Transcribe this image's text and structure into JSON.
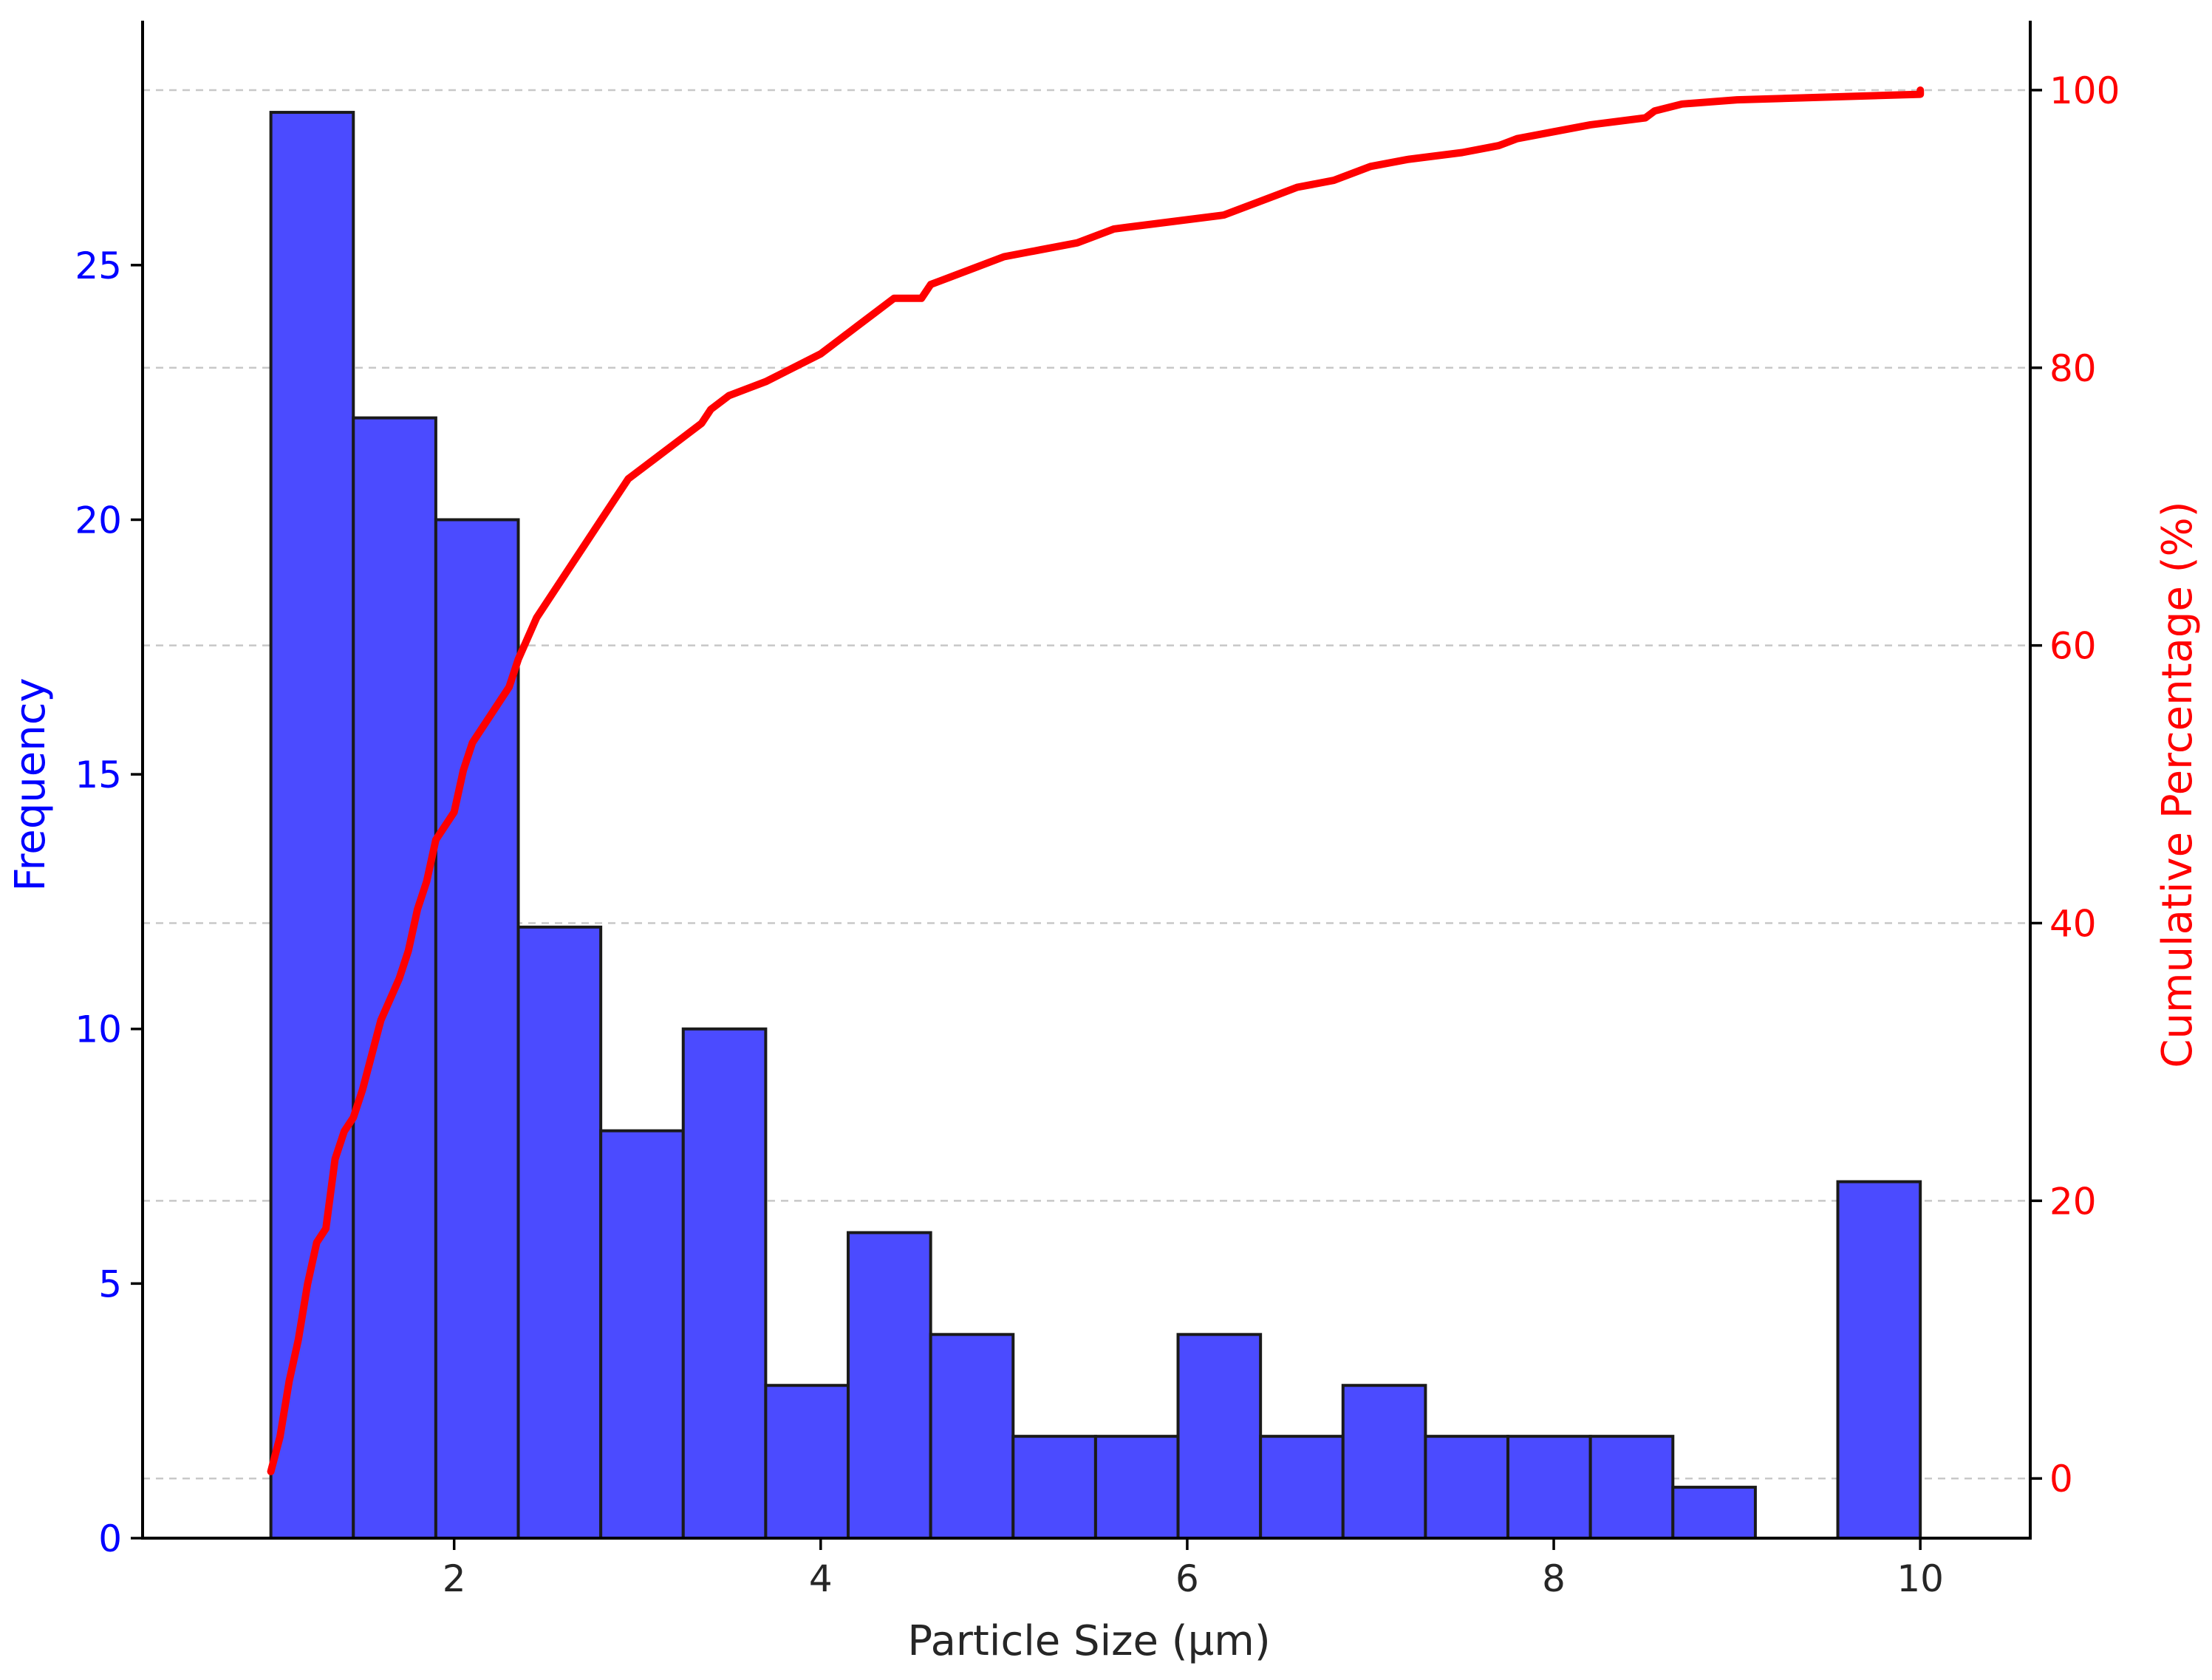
{
  "chart_data": {
    "type": "bar",
    "xlabel": "Particle Size (µm)",
    "ylabel_left": "Frequency",
    "ylabel_right": "Cumulative Percentage (%)",
    "xlim": [
      0.3,
      10.6
    ],
    "ylim_left": [
      0,
      29.8
    ],
    "ylim_right": [
      -4.3,
      105
    ],
    "x_ticks": [
      2,
      4,
      6,
      8,
      10
    ],
    "y_left_ticks": [
      0,
      5,
      10,
      15,
      20,
      25
    ],
    "y_right_ticks": [
      0,
      20,
      40,
      60,
      80,
      100
    ],
    "grid": "horizontal dashed",
    "colors": {
      "bars": "#4b4bff",
      "bar_edge": "#1a1a1a",
      "cumulative_line": "#ff0000",
      "left_axis": "#0000ff",
      "right_axis": "#ff0000"
    },
    "histogram": {
      "bin_edges": [
        1.0,
        1.45,
        1.9,
        2.35,
        2.8,
        3.25,
        3.7,
        4.15,
        4.6,
        5.05,
        5.5,
        5.95,
        6.4,
        6.85,
        7.3,
        7.75,
        8.2,
        8.65,
        9.1,
        9.55,
        10.0
      ],
      "values": [
        28,
        22,
        20,
        12,
        8,
        10,
        3,
        6,
        4,
        2,
        2,
        4,
        2,
        3,
        2,
        2,
        2,
        1,
        0,
        7
      ]
    },
    "cumulative_series": {
      "x": [
        1.0,
        1.05,
        1.1,
        1.15,
        1.2,
        1.25,
        1.3,
        1.35,
        1.4,
        1.45,
        1.5,
        1.6,
        1.7,
        1.75,
        1.8,
        1.85,
        1.9,
        2.0,
        2.05,
        2.1,
        2.2,
        2.3,
        2.35,
        2.45,
        2.55,
        2.65,
        2.7,
        2.8,
        2.9,
        2.95,
        3.05,
        3.15,
        3.25,
        3.35,
        3.4,
        3.5,
        3.7,
        3.85,
        4.0,
        4.1,
        4.2,
        4.3,
        4.4,
        4.55,
        4.6,
        4.8,
        5.0,
        5.2,
        5.4,
        5.5,
        5.6,
        5.9,
        6.2,
        6.3,
        6.4,
        6.5,
        6.6,
        6.8,
        6.9,
        7.0,
        7.2,
        7.5,
        7.7,
        7.8,
        8.0,
        8.2,
        8.5,
        8.55,
        8.7,
        9.0,
        9.5,
        10.0,
        10.0
      ],
      "values": [
        0.5,
        3,
        7,
        10,
        14,
        17,
        18,
        23,
        25,
        26,
        28,
        33,
        36,
        38,
        41,
        43,
        46,
        48,
        51,
        53,
        55,
        57,
        59,
        62,
        64,
        66,
        67,
        69,
        71,
        72,
        73,
        74,
        75,
        76,
        77,
        78,
        79,
        80,
        81,
        82,
        83,
        84,
        85,
        85,
        86,
        87,
        88,
        88.5,
        89,
        89.5,
        90,
        90.5,
        91,
        91.5,
        92,
        92.5,
        93,
        93.5,
        94,
        94.5,
        95,
        95.5,
        96,
        96.5,
        97,
        97.5,
        98,
        98.5,
        99,
        99.3,
        99.5,
        99.7,
        100
      ]
    }
  }
}
